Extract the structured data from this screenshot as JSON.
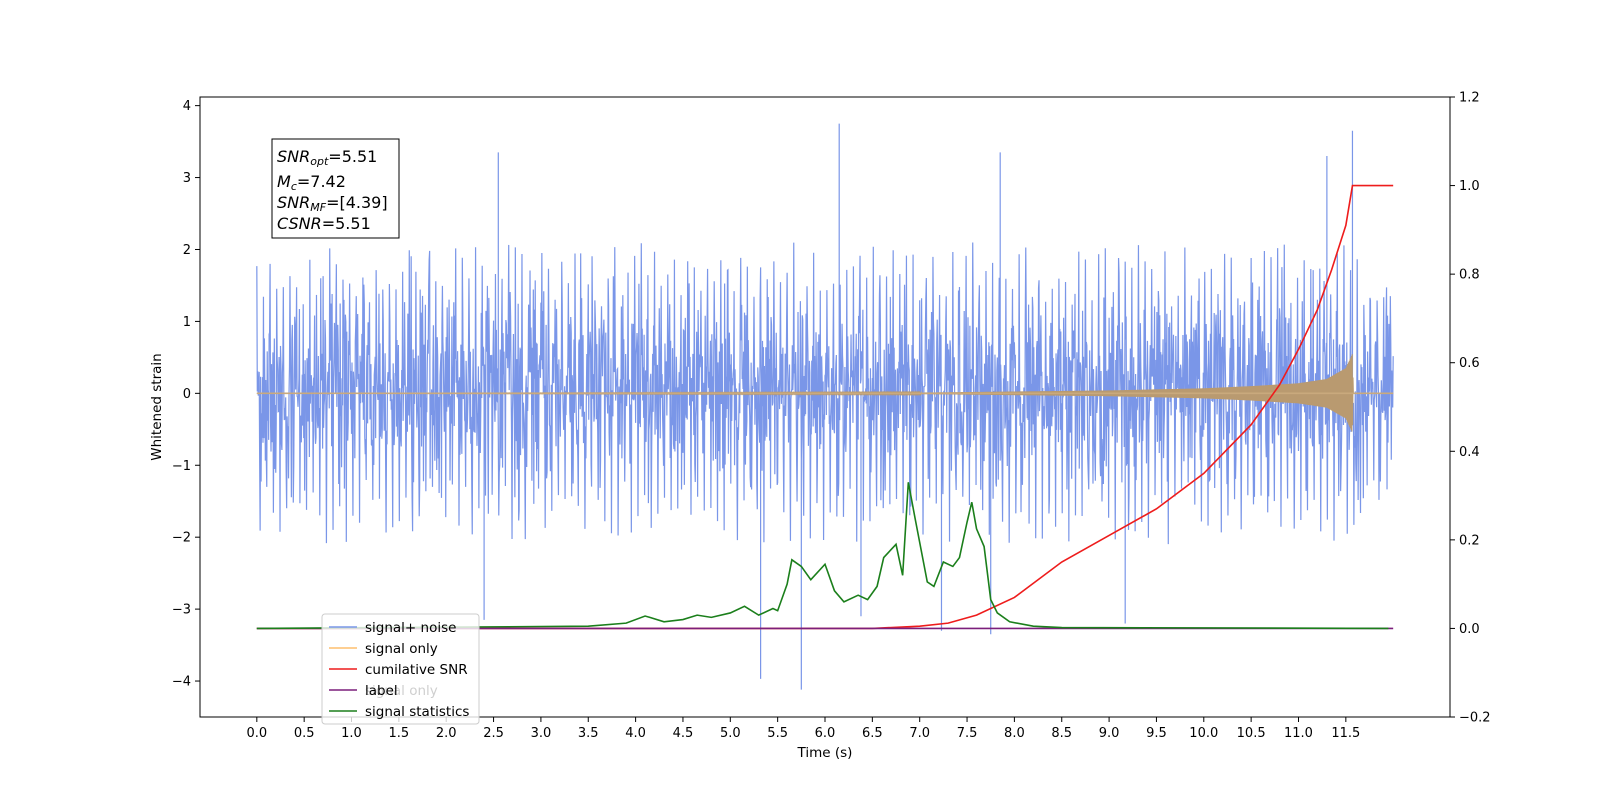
{
  "chart_data": {
    "type": "line",
    "xlabel": "Time (s)",
    "ylabel": "Whitened strain",
    "xlim": [
      -0.6,
      12.6
    ],
    "ylim": [
      -4.5,
      4.12
    ],
    "ylim_right": [
      -0.2,
      1.2
    ],
    "x_ticks": [
      0.0,
      0.5,
      1.0,
      1.5,
      2.0,
      2.5,
      3.0,
      3.5,
      4.0,
      4.5,
      5.0,
      5.5,
      6.0,
      6.5,
      7.0,
      7.5,
      8.0,
      8.5,
      9.0,
      9.5,
      10.0,
      10.5,
      11.0,
      11.5
    ],
    "x_tick_labels": [
      "0.0",
      "0.5",
      "1.0",
      "1.5",
      "2.0",
      "2.5",
      "3.0",
      "3.5",
      "4.0",
      "4.5",
      "5.0",
      "5.5",
      "6.0",
      "6.5",
      "7.0",
      "7.5",
      "8.0",
      "8.5",
      "9.0",
      "9.5",
      "10.0",
      "10.5",
      "11.0",
      "11.5"
    ],
    "y_ticks": [
      -4,
      -3,
      -2,
      -1,
      0,
      1,
      2,
      3,
      4
    ],
    "y_tick_labels": [
      "−4",
      "−3",
      "−2",
      "−1",
      "0",
      "1",
      "2",
      "3",
      "4"
    ],
    "y2_ticks": [
      -0.2,
      0.0,
      0.2,
      0.4,
      0.6,
      0.8,
      1.0,
      1.2
    ],
    "y2_tick_labels": [
      "−0.2",
      "0.0",
      "0.2",
      "0.4",
      "0.6",
      "0.8",
      "1.0",
      "1.2"
    ],
    "grid": false,
    "legend_position": "lower-left",
    "stats_box": {
      "snr_opt": {
        "base": "SNR",
        "sub": "opt",
        "value": "=5.51"
      },
      "mc": {
        "base": "M",
        "sub": "c",
        "value": "=7.42"
      },
      "snr_mf": {
        "base": "SNR",
        "sub": "MF",
        "value": "=[4.39]"
      },
      "csnr": {
        "base": "CSNR",
        "value": "=5.51"
      }
    },
    "series": [
      {
        "name": "signal+ noise",
        "axis": "left",
        "color": "#7a96e8",
        "x_range": [
          0.0,
          12.0
        ],
        "typical_range": [
          -1.7,
          2.0
        ],
        "peaks": [
          {
            "x": 6.15,
            "y": 3.75
          },
          {
            "x": 11.57,
            "y": 3.65
          },
          {
            "x": 2.55,
            "y": 3.35
          },
          {
            "x": 7.85,
            "y": 3.35
          },
          {
            "x": 11.3,
            "y": 3.3
          },
          {
            "x": 5.75,
            "y": -4.12
          },
          {
            "x": 5.32,
            "y": -3.97
          },
          {
            "x": 9.17,
            "y": -3.2
          },
          {
            "x": 7.23,
            "y": -3.3
          },
          {
            "x": 7.75,
            "y": -3.35
          },
          {
            "x": 2.4,
            "y": -3.15
          },
          {
            "x": 6.38,
            "y": -3.1
          }
        ]
      },
      {
        "name": "signal only",
        "axis": "left",
        "color": "#fdbf6f",
        "x_range": [
          0.0,
          12.0
        ],
        "envelope": {
          "x": [
            0.0,
            7.0,
            9.0,
            10.0,
            10.5,
            11.0,
            11.3,
            11.5,
            11.57,
            11.58,
            12.0
          ],
          "amp": [
            0.0,
            0.01,
            0.04,
            0.07,
            0.1,
            0.14,
            0.2,
            0.35,
            0.55,
            0.0,
            0.0
          ]
        }
      },
      {
        "name": "cumilative SNR",
        "axis": "right",
        "color": "#ee1c1c",
        "x": [
          0.0,
          6.5,
          7.0,
          7.3,
          7.6,
          8.0,
          8.5,
          9.0,
          9.5,
          10.0,
          10.5,
          10.8,
          11.0,
          11.2,
          11.35,
          11.5,
          11.57,
          12.0
        ],
        "y": [
          0.0,
          0.0,
          0.005,
          0.012,
          0.03,
          0.07,
          0.15,
          0.21,
          0.27,
          0.35,
          0.46,
          0.55,
          0.63,
          0.72,
          0.81,
          0.91,
          1.0,
          1.0
        ]
      },
      {
        "name": "label",
        "axis": "right",
        "color": "#7b1f7b",
        "x": [
          0.0,
          12.0
        ],
        "y": [
          0.0,
          0.0
        ]
      },
      {
        "name": "signal statistics",
        "axis": "right",
        "color": "#1b7f1b",
        "x": [
          0.0,
          3.5,
          3.9,
          4.1,
          4.15,
          4.3,
          4.5,
          4.65,
          4.8,
          5.0,
          5.15,
          5.3,
          5.45,
          5.5,
          5.6,
          5.65,
          5.75,
          5.85,
          6.0,
          6.1,
          6.2,
          6.35,
          6.45,
          6.55,
          6.62,
          6.75,
          6.82,
          6.88,
          6.95,
          7.08,
          7.15,
          7.25,
          7.35,
          7.42,
          7.5,
          7.55,
          7.6,
          7.68,
          7.75,
          7.82,
          7.95,
          8.2,
          8.5,
          11.95
        ],
        "y": [
          0.0,
          0.005,
          0.012,
          0.028,
          0.025,
          0.015,
          0.02,
          0.03,
          0.025,
          0.035,
          0.05,
          0.03,
          0.045,
          0.04,
          0.1,
          0.155,
          0.14,
          0.11,
          0.145,
          0.085,
          0.06,
          0.075,
          0.065,
          0.095,
          0.16,
          0.19,
          0.12,
          0.33,
          0.25,
          0.105,
          0.095,
          0.15,
          0.14,
          0.16,
          0.24,
          0.285,
          0.225,
          0.185,
          0.065,
          0.035,
          0.015,
          0.005,
          0.002,
          0.0
        ]
      }
    ],
    "legend_extra_text": "signal only"
  }
}
